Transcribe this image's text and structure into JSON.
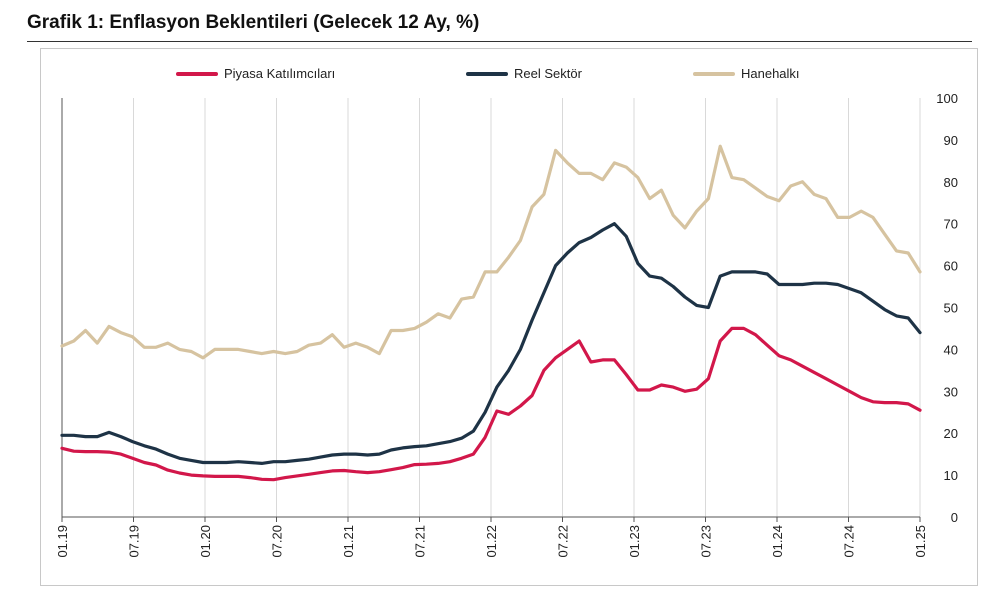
{
  "title": "Grafik 1: Enflasyon Beklentileri (Gelecek 12 Ay, %)",
  "chart_data": {
    "type": "line",
    "ylim": [
      0,
      100
    ],
    "y_ticks": [
      "0",
      "10",
      "20",
      "30",
      "40",
      "50",
      "60",
      "70",
      "80",
      "90",
      "100"
    ],
    "y_axis_side": "right",
    "grid": "vertical",
    "legend_position": "top",
    "x_tick_labels": [
      "01.19",
      "07.19",
      "01.20",
      "07.20",
      "01.21",
      "07.21",
      "01.22",
      "07.22",
      "01.23",
      "07.23",
      "01.24",
      "07.24",
      "01.25"
    ],
    "x_start": "01.19",
    "x_end": "01.25",
    "colors": {
      "piyasa": "#d2174a",
      "reel": "#1e3346",
      "hane": "#d6c3a0",
      "grid": "#d9d9d9"
    },
    "series": [
      {
        "name": "Piyasa Katılımcıları",
        "key": "piyasa",
        "values": [
          16.4,
          15.7,
          15.6,
          15.6,
          15.5,
          15.0,
          14.0,
          13.0,
          12.4,
          11.2,
          10.5,
          10.0,
          9.8,
          9.7,
          9.7,
          9.7,
          9.4,
          9.0,
          8.9,
          9.4,
          9.8,
          10.2,
          10.6,
          11.0,
          11.1,
          10.8,
          10.6,
          10.8,
          11.3,
          11.8,
          12.5,
          12.6,
          12.8,
          13.2,
          14.0,
          15.0,
          19.0,
          25.3,
          24.5,
          26.5,
          29.0,
          35.0,
          38.0,
          40.0,
          42.0,
          37.0,
          37.5,
          37.5,
          34.0,
          30.3,
          30.3,
          31.5,
          31.0,
          30.0,
          30.5,
          33.0,
          42.0,
          45.0,
          45.0,
          43.5,
          41.0,
          38.5,
          37.5,
          36.0,
          34.5,
          33.0,
          31.5,
          30.0,
          28.5,
          27.5,
          27.3,
          27.3,
          27.0,
          25.5
        ]
      },
      {
        "name": "Reel Sektör",
        "key": "reel",
        "values": [
          19.5,
          19.5,
          19.2,
          19.2,
          20.2,
          19.2,
          18.0,
          17.0,
          16.2,
          15.0,
          14.0,
          13.5,
          13.0,
          13.0,
          13.0,
          13.2,
          13.0,
          12.8,
          13.2,
          13.2,
          13.5,
          13.8,
          14.3,
          14.8,
          15.0,
          15.0,
          14.8,
          15.0,
          16.0,
          16.5,
          16.8,
          17.0,
          17.5,
          18.0,
          18.8,
          20.5,
          25.0,
          31.0,
          35.0,
          40.0,
          47.0,
          53.5,
          60.0,
          63.0,
          65.5,
          66.7,
          68.5,
          70.0,
          67.0,
          60.5,
          57.5,
          57.0,
          55.0,
          52.5,
          50.5,
          50.0,
          57.5,
          58.5,
          58.5,
          58.5,
          58.0,
          55.5,
          55.5,
          55.5,
          55.8,
          55.8,
          55.5,
          54.5,
          53.5,
          51.5,
          49.5,
          48.0,
          47.5,
          44.0
        ]
      },
      {
        "name": "Hanehalkı",
        "key": "hane",
        "values": [
          40.8,
          42.0,
          44.5,
          41.5,
          45.5,
          44.0,
          43.0,
          40.5,
          40.5,
          41.5,
          40.0,
          39.5,
          38.0,
          40.0,
          40.0,
          40.0,
          39.5,
          39.0,
          39.5,
          39.0,
          39.5,
          41.0,
          41.5,
          43.5,
          40.5,
          41.5,
          40.5,
          39.0,
          44.5,
          44.5,
          45.0,
          46.5,
          48.5,
          47.5,
          52.0,
          52.5,
          58.5,
          58.5,
          62.0,
          66.0,
          74.0,
          77.0,
          87.5,
          84.5,
          82.0,
          82.0,
          80.5,
          84.5,
          83.5,
          81.0,
          76.0,
          78.0,
          72.0,
          69.0,
          73.0,
          76.0,
          88.5,
          81.0,
          80.5,
          78.5,
          76.5,
          75.5,
          79.0,
          80.0,
          77.0,
          76.0,
          71.5,
          71.5,
          73.0,
          71.5,
          67.5,
          63.5,
          63.0,
          58.5
        ]
      }
    ]
  }
}
